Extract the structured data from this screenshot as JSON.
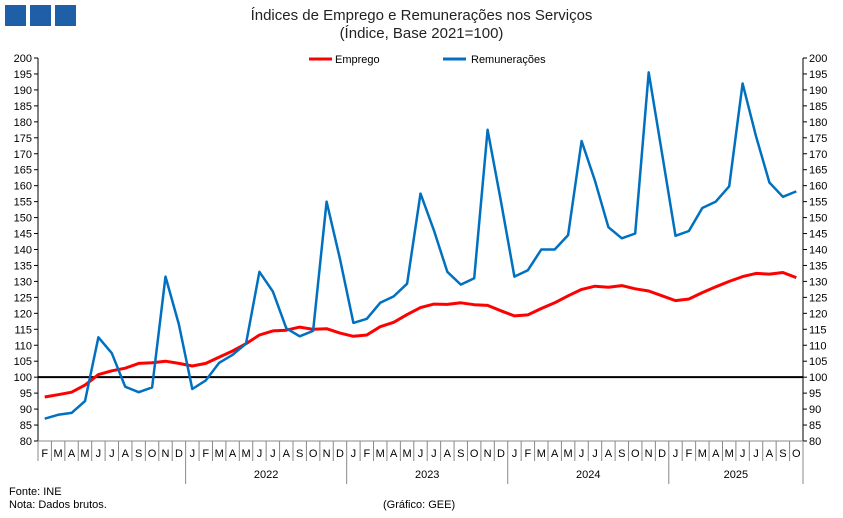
{
  "chart_data": {
    "type": "line",
    "title": "Índices de Emprego e Remunerações nos Serviços",
    "subtitle": "(Índice, Base 2021=100)",
    "ylim": [
      80,
      200
    ],
    "ytick_step": 5,
    "reference_line": 100,
    "grid": false,
    "legend_position": "top",
    "month_labels": [
      "F",
      "M",
      "A",
      "M",
      "J",
      "J",
      "A",
      "S",
      "O",
      "N",
      "D",
      "J",
      "F",
      "M",
      "A",
      "M",
      "J",
      "J",
      "A",
      "S",
      "O",
      "N",
      "D",
      "J",
      "F",
      "M",
      "A",
      "M",
      "J",
      "J",
      "A",
      "S",
      "O",
      "N",
      "D",
      "J",
      "F",
      "M",
      "A",
      "M",
      "J",
      "J",
      "A",
      "S",
      "O",
      "N",
      "D",
      "J",
      "F",
      "M",
      "A",
      "M",
      "J",
      "J",
      "A",
      "S",
      "O"
    ],
    "year_labels": [
      {
        "label": "",
        "start": 0,
        "count": 11
      },
      {
        "label": "2022",
        "start": 11,
        "count": 12
      },
      {
        "label": "2023",
        "start": 23,
        "count": 12
      },
      {
        "label": "2024",
        "start": 35,
        "count": 12
      },
      {
        "label": "2025",
        "start": 47,
        "count": 10
      }
    ],
    "series": [
      {
        "name": "Emprego",
        "color": "#ff0000",
        "values": [
          93.8,
          94.5,
          95.3,
          97.5,
          100.8,
          102,
          102.8,
          104.3,
          104.5,
          105,
          104.3,
          103.5,
          104.3,
          106.3,
          108.2,
          110.5,
          113.2,
          114.5,
          114.7,
          115.7,
          115,
          115.2,
          113.8,
          112.8,
          113.2,
          115.8,
          117.2,
          119.6,
          121.8,
          122.9,
          122.8,
          123.3,
          122.7,
          122.5,
          120.8,
          119.2,
          119.5,
          121.5,
          123.3,
          125.5,
          127.5,
          128.5,
          128.2,
          128.7,
          127.7,
          127,
          125.5,
          124,
          124.5,
          126.5,
          128.3,
          130,
          131.5,
          132.5,
          132.3,
          132.8,
          131.2
        ]
      },
      {
        "name": "Remunerações",
        "color": "#0070c0",
        "values": [
          87,
          88.2,
          88.8,
          92.5,
          112.5,
          107.5,
          97,
          95.3,
          96.8,
          131.5,
          116.5,
          96.3,
          99,
          104.5,
          107,
          110.5,
          133,
          126.8,
          115.3,
          112.8,
          114.5,
          155,
          137,
          117,
          118.3,
          123.3,
          125.3,
          129.3,
          157.5,
          146,
          133,
          129,
          131,
          177.5,
          155,
          131.5,
          133.5,
          140,
          140,
          144.5,
          174,
          161.5,
          147,
          143.5,
          145,
          195.5,
          170,
          144.3,
          145.8,
          153,
          155,
          159.8,
          192,
          175.5,
          161,
          156.5,
          158.2
        ]
      }
    ]
  },
  "footer": {
    "source": "Fonte: INE",
    "note": "Nota: Dados brutos.",
    "credit": "(Gráfico: GEE)"
  },
  "logo_color": "#1f5fa8"
}
